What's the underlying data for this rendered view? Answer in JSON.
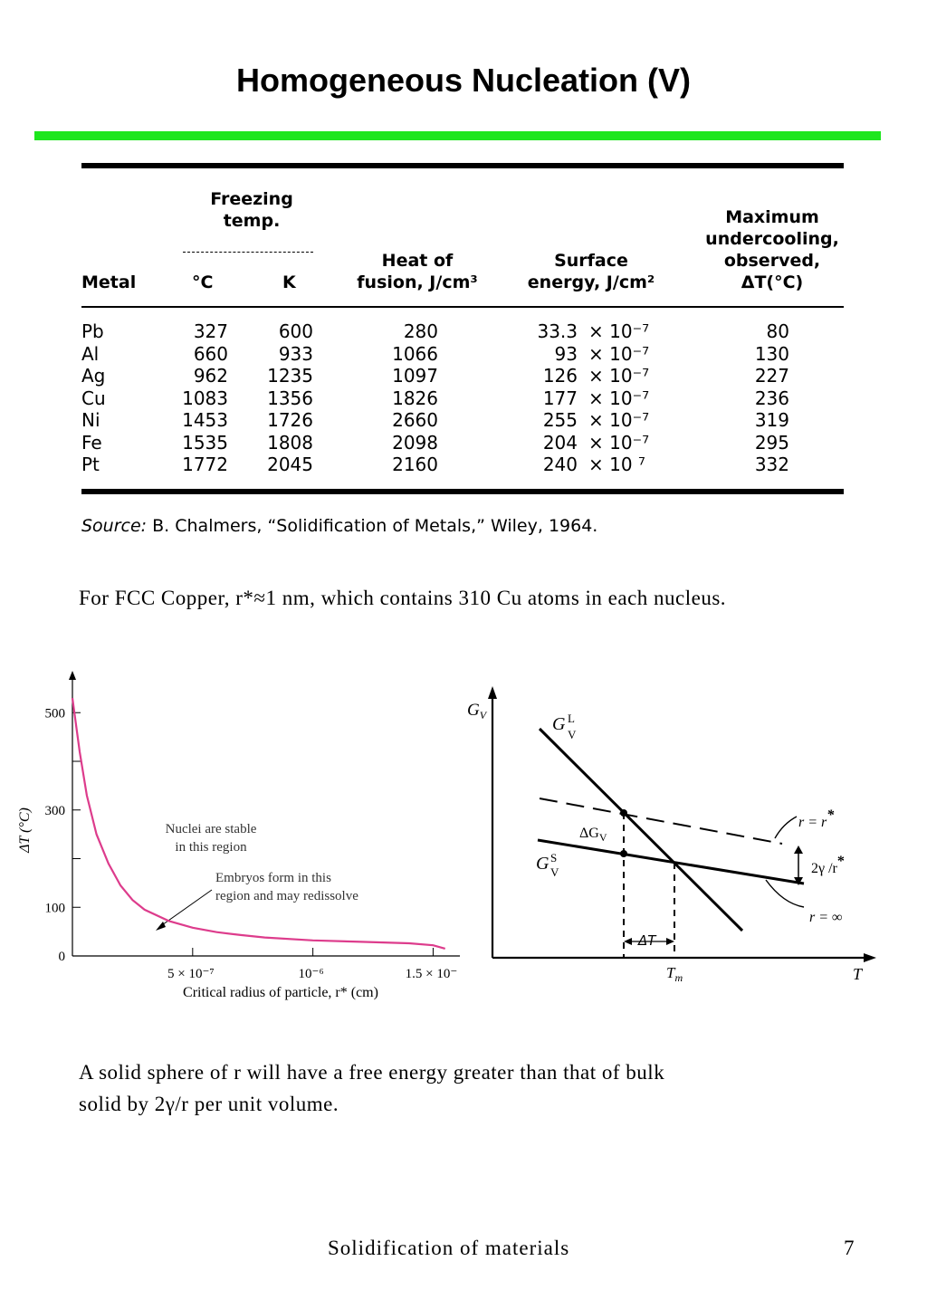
{
  "title": "Homogeneous Nucleation (V)",
  "colors": {
    "accent_bar": "#1ee61e",
    "curve": "#dd3c8c"
  },
  "table": {
    "headers": {
      "metal": "Metal",
      "freezing_temp": "Freezing temp.",
      "celsius": "°C",
      "kelvin": "K",
      "heat_of_fusion_1": "Heat of",
      "heat_of_fusion_2": "fusion, J/cm³",
      "surface_energy_1": "Surface",
      "surface_energy_2": "energy, J/cm²",
      "max_undercooling_1": "Maximum",
      "max_undercooling_2": "undercooling,",
      "max_undercooling_3": "observed,",
      "max_undercooling_4": "ΔT(°C)"
    },
    "rows": [
      {
        "metal": "Pb",
        "c": "327",
        "k": "600",
        "heat": "280",
        "surface": "33.3",
        "exp": "× 10⁻⁷",
        "dt": "80"
      },
      {
        "metal": "Al",
        "c": "660",
        "k": "933",
        "heat": "1066",
        "surface": "93",
        "exp": "× 10⁻⁷",
        "dt": "130"
      },
      {
        "metal": "Ag",
        "c": "962",
        "k": "1235",
        "heat": "1097",
        "surface": "126",
        "exp": "× 10⁻⁷",
        "dt": "227"
      },
      {
        "metal": "Cu",
        "c": "1083",
        "k": "1356",
        "heat": "1826",
        "surface": "177",
        "exp": "× 10⁻⁷",
        "dt": "236"
      },
      {
        "metal": "Ni",
        "c": "1453",
        "k": "1726",
        "heat": "2660",
        "surface": "255",
        "exp": "× 10⁻⁷",
        "dt": "319"
      },
      {
        "metal": "Fe",
        "c": "1535",
        "k": "1808",
        "heat": "2098",
        "surface": "204",
        "exp": "× 10⁻⁷",
        "dt": "295"
      },
      {
        "metal": "Pt",
        "c": "1772",
        "k": "2045",
        "heat": "2160",
        "surface": "240",
        "exp": "× 10 ⁷",
        "dt": "332"
      }
    ],
    "source_label": "Source:",
    "source_text": "B. Chalmers, “Solidification of Metals,” Wiley, 1964."
  },
  "note_fcc": "For FCC Copper, r*≈1 nm,  which contains 310 Cu atoms in each nucleus.",
  "chart_left": {
    "type": "line",
    "ylabel": "ΔT (°C)",
    "xlabel": "Critical radius of particle, r* (cm)",
    "y_ticks": [
      "500",
      "300",
      "100",
      "0"
    ],
    "x_ticks": [
      "5 × 10⁻⁷",
      "10⁻⁶",
      "1.5 × 10⁻"
    ],
    "annotation_stable_1": "Nuclei are stable",
    "annotation_stable_2": "in this region",
    "annotation_embryo_1": "Embryos form in this",
    "annotation_embryo_2": "region and may redissolve"
  },
  "chart_data": {
    "type": "line",
    "xlabel": "Critical radius of particle, r* (cm)",
    "ylabel": "ΔT (°C)",
    "ylim": [
      0,
      560
    ],
    "xlim": [
      0,
      1.6e-06
    ],
    "series": [
      {
        "x": [
          0.0,
          3e-08,
          6e-08,
          1e-07,
          1.5e-07,
          2e-07,
          2.5e-07,
          3e-07,
          4e-07,
          5e-07,
          6e-07,
          7e-07,
          8e-07,
          1e-06,
          1.2e-06,
          1.4e-06,
          1.5e-06,
          1.55e-06
        ],
        "y": [
          530,
          420,
          330,
          250,
          190,
          145,
          115,
          95,
          72,
          58,
          49,
          43,
          38,
          32,
          29,
          26,
          22,
          15
        ]
      }
    ]
  },
  "chart_right": {
    "y_axis": "G",
    "y_axis_sub": "V",
    "x_axis": "T",
    "gl": "G",
    "gl_sup": "L",
    "gl_sub": "V",
    "gs": "G",
    "gs_sup": "S",
    "gs_sub": "V",
    "delta_g": "ΔG",
    "delta_g_sub": "V",
    "r_star": "r = r",
    "r_inf": "r = ∞",
    "two_gamma": "2γ /r",
    "delta_t": "ΔT",
    "tm": "T",
    "tm_sub": "m"
  },
  "note_sphere_1": "A solid  sphere of r will have  a free  energy greater than that  of bulk",
  "note_sphere_2": "solid  by 2γ/r per  unit  volume.",
  "footer_text": "Solidification of materials",
  "page_number": "7"
}
